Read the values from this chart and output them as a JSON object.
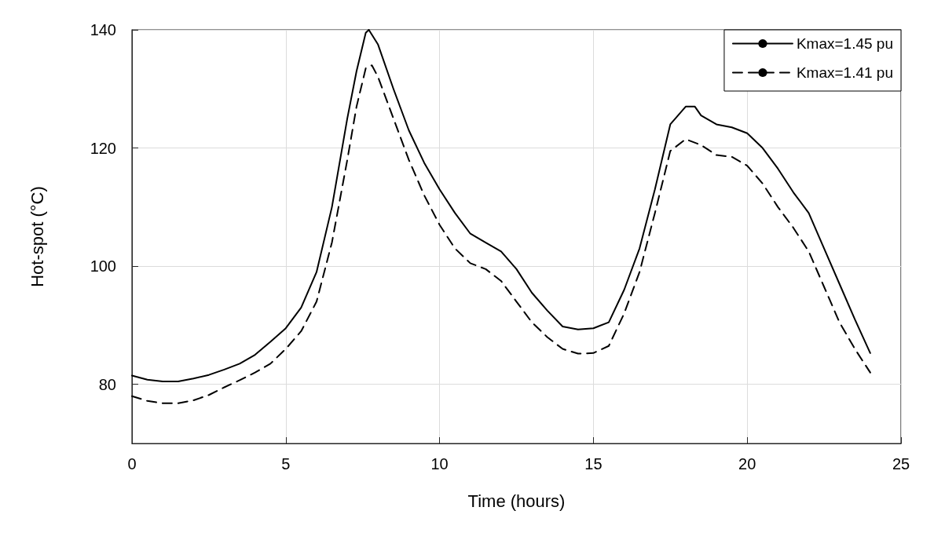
{
  "chart_data": {
    "type": "line",
    "xlabel": "Time (hours)",
    "ylabel": "Hot-spot (°C)",
    "xlim": [
      0,
      25
    ],
    "xticks": [
      0,
      5,
      10,
      15,
      20,
      25
    ],
    "ylim": [
      70,
      140
    ],
    "yticks": [
      {
        "value": 70,
        "label": null
      },
      80,
      100,
      120,
      140
    ],
    "grid": true,
    "legend": "top right",
    "marker": "none",
    "series": [
      {
        "name": "Kmax=1.45 pu",
        "color": "#000000",
        "line_style": "solid",
        "x": [
          0,
          0.5,
          1,
          1.5,
          2,
          2.5,
          3,
          3.5,
          4,
          4.5,
          5,
          5.5,
          6,
          6.5,
          7,
          7.3,
          7.6,
          7.7,
          8,
          8.5,
          9,
          9.5,
          10,
          10.5,
          11,
          11.5,
          12,
          12.5,
          13,
          13.5,
          14,
          14.5,
          15,
          15.5,
          16,
          16.5,
          17,
          17.5,
          18,
          18.3,
          18.5,
          19,
          19.5,
          20,
          20.5,
          21,
          21.5,
          22,
          22.5,
          23,
          23.5,
          24
        ],
        "values": [
          81.5,
          80.8,
          80.5,
          80.5,
          81,
          81.6,
          82.5,
          83.5,
          85,
          87.2,
          89.5,
          93,
          99,
          110,
          125,
          133,
          139.5,
          140,
          137.5,
          130,
          123,
          117.5,
          113,
          109,
          105.5,
          104,
          102.5,
          99.5,
          95.5,
          92.5,
          89.8,
          89.3,
          89.5,
          90.5,
          96,
          103,
          113,
          124,
          127,
          127,
          125.5,
          124,
          123.5,
          122.5,
          120,
          116.5,
          112.5,
          109,
          103,
          97,
          91,
          85.3
        ]
      },
      {
        "name": "Kmax=1.41 pu",
        "color": "#000000",
        "line_style": "dashed",
        "x": [
          0,
          0.5,
          1,
          1.5,
          2,
          2.5,
          3,
          3.5,
          4,
          4.5,
          5,
          5.5,
          6,
          6.5,
          7,
          7.3,
          7.6,
          7.8,
          8,
          8.5,
          9,
          9.5,
          10,
          10.5,
          11,
          11.5,
          12,
          12.5,
          13,
          13.5,
          14,
          14.5,
          15,
          15.5,
          16,
          16.5,
          17,
          17.5,
          18,
          18.5,
          19,
          19.5,
          20,
          20.5,
          21,
          21.5,
          22,
          22.5,
          23,
          23.5,
          24
        ],
        "values": [
          78,
          77.2,
          76.8,
          76.8,
          77.3,
          78.2,
          79.5,
          80.7,
          82,
          83.5,
          86,
          89,
          94,
          104,
          118,
          127,
          133.5,
          134,
          132,
          125,
          118,
          112,
          107,
          103,
          100.5,
          99.5,
          97.5,
          94,
          90.5,
          88,
          86,
          85.2,
          85.3,
          86.5,
          92,
          99,
          109,
          119.5,
          121.5,
          120.5,
          118.8,
          118.5,
          117,
          114,
          110,
          106.5,
          102.5,
          96.5,
          90.5,
          86,
          82
        ]
      }
    ]
  }
}
